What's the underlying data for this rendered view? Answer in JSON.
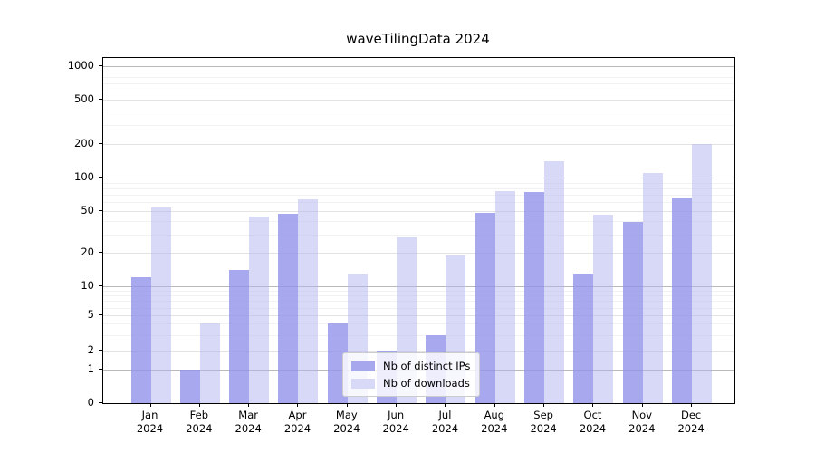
{
  "chart_data": {
    "type": "bar",
    "title": "waveTilingData 2024",
    "xlabel": "",
    "ylabel": "",
    "scale": "symlog-like",
    "grid": true,
    "legend_position": "bottom-center",
    "y_ticks": [
      0,
      1,
      2,
      5,
      10,
      20,
      50,
      100,
      200,
      500,
      1000
    ],
    "ylim": [
      0,
      1100
    ],
    "categories": [
      "Jan",
      "Feb",
      "Mar",
      "Apr",
      "May",
      "Jun",
      "Jul",
      "Aug",
      "Sep",
      "Oct",
      "Nov",
      "Dec"
    ],
    "year": "2024",
    "series": [
      {
        "name": "Nb of distinct IPs",
        "color": "#a7a7ee",
        "values": [
          12,
          1,
          14,
          47,
          4,
          2,
          3,
          48,
          74,
          13,
          39,
          66
        ]
      },
      {
        "name": "Nb of downloads",
        "color": "#d8d8f7",
        "values": [
          54,
          4,
          44,
          64,
          13,
          28,
          19,
          75,
          140,
          46,
          110,
          200
        ]
      }
    ]
  }
}
